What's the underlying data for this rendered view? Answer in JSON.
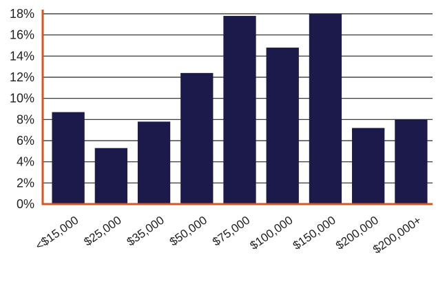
{
  "chart_data": {
    "type": "bar",
    "categories": [
      "<$15,000",
      "$25,000",
      "$35,000",
      "$50,000",
      "$75,000",
      "$100,000",
      "$150,000",
      "$200,000",
      "$200,000+"
    ],
    "series": [
      {
        "values": [
          8.7,
          5.3,
          7.8,
          12.4,
          17.8,
          14.8,
          18.0,
          7.2,
          8.0
        ]
      }
    ],
    "title": "",
    "xlabel": "",
    "ylabel": "",
    "ylim": [
      0,
      18
    ],
    "yticks": [
      "0%",
      "2%",
      "4%",
      "6%",
      "8%",
      "10%",
      "12%",
      "14%",
      "16%",
      "18%"
    ],
    "grid": true,
    "legend": "none",
    "colors": {
      "bar": "#1c1a4a",
      "axis": "#d4561e",
      "grid": "#222222",
      "text": "#1f1f1f"
    }
  }
}
